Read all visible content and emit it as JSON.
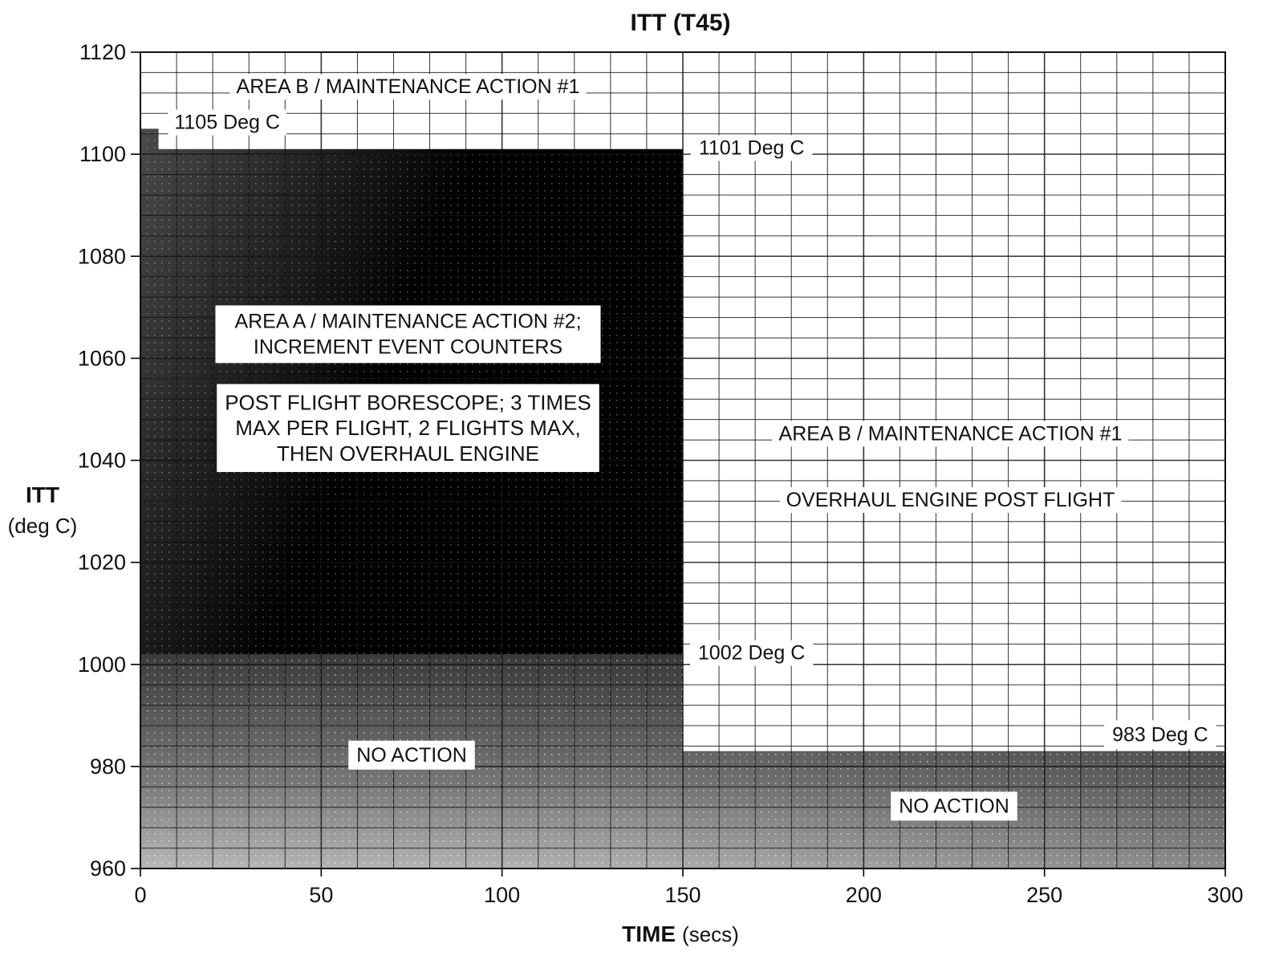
{
  "chart_data": {
    "type": "area",
    "title": "ITT (T45)",
    "xlabel_main": "TIME",
    "xlabel_unit": "(secs)",
    "ylabel_main": "ITT",
    "ylabel_unit": "(deg C)",
    "xlim": [
      0,
      300
    ],
    "ylim": [
      960,
      1120
    ],
    "x_ticks": [
      "0",
      "50",
      "100",
      "150",
      "200",
      "250",
      "300"
    ],
    "y_ticks": [
      "960",
      "980",
      "1000",
      "1020",
      "1040",
      "1060",
      "1080",
      "1100",
      "1120"
    ],
    "grid": true,
    "areas": [
      {
        "name": "AREA A",
        "x": [
          0,
          150
        ],
        "y": [
          1002,
          1101
        ],
        "step": {
          "x": [
            0,
            5
          ],
          "y": 1105
        }
      },
      {
        "name": "NO ACTION",
        "segments": [
          {
            "x": [
              0,
              150
            ],
            "y": [
              960,
              1002
            ]
          },
          {
            "x": [
              150,
              300
            ],
            "y": [
              960,
              983
            ]
          }
        ]
      }
    ],
    "annotations": [
      {
        "id": "area_b_top",
        "text": "AREA B / MAINTENANCE ACTION #1",
        "x": 74,
        "y": 1113
      },
      {
        "id": "limit_1105",
        "text": "1105 Deg C",
        "x": 24,
        "y": 1106
      },
      {
        "id": "limit_1101",
        "text": "1101 Deg C",
        "x": 169,
        "y": 1101
      },
      {
        "id": "area_a_line1",
        "text": "AREA A / MAINTENANCE ACTION #2;",
        "x": 74,
        "y": 1067
      },
      {
        "id": "area_a_line2",
        "text": "INCREMENT EVENT COUNTERS",
        "x": 74,
        "y": 1062
      },
      {
        "id": "borescope_line1",
        "text": "POST FLIGHT BORESCOPE; 3 TIMES",
        "x": 74,
        "y": 1051
      },
      {
        "id": "borescope_line2",
        "text": "MAX PER FLIGHT, 2 FLIGHTS MAX,",
        "x": 74,
        "y": 1046
      },
      {
        "id": "borescope_line3",
        "text": "THEN OVERHAUL ENGINE",
        "x": 74,
        "y": 1041
      },
      {
        "id": "area_b_right",
        "text": "AREA B / MAINTENANCE ACTION #1",
        "x": 224,
        "y": 1045
      },
      {
        "id": "overhaul",
        "text": "OVERHAUL ENGINE POST FLIGHT",
        "x": 224,
        "y": 1032
      },
      {
        "id": "limit_1002",
        "text": "1002 Deg C",
        "x": 169,
        "y": 1002
      },
      {
        "id": "limit_983",
        "text": "983 Deg C",
        "x": 282,
        "y": 986
      },
      {
        "id": "no_action_left",
        "text": "NO ACTION",
        "x": 75,
        "y": 982
      },
      {
        "id": "no_action_right",
        "text": "NO ACTION",
        "x": 225,
        "y": 972
      }
    ],
    "colors": {
      "area_a": "#000000",
      "no_action_dark": "#3a3a3a",
      "no_action_light": "#b5b5b5",
      "grid": "#111111",
      "background": "#ffffff"
    }
  }
}
